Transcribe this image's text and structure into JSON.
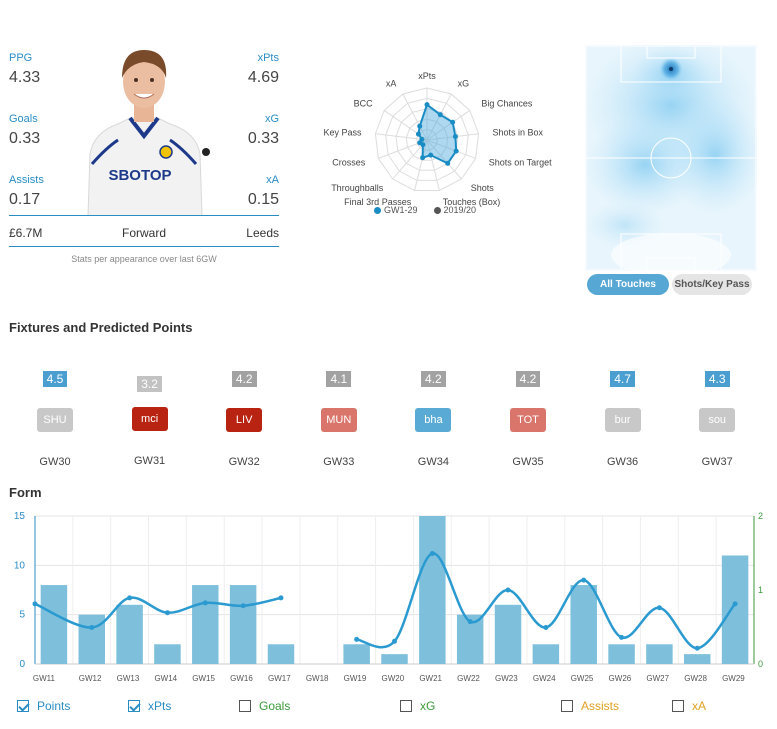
{
  "player": {
    "stats": {
      "ppg_label": "PPG",
      "ppg_value": "4.33",
      "goals_label": "Goals",
      "goals_value": "0.33",
      "assists_label": "Assists",
      "assists_value": "0.17",
      "xpts_label": "xPts",
      "xpts_value": "4.69",
      "xg_label": "xG",
      "xg_value": "0.33",
      "xa_label": "xA",
      "xa_value": "0.15"
    },
    "price": "£6.7M",
    "position": "Forward",
    "team": "Leeds",
    "shirt_sponsor": "SBOTOP",
    "note": "Stats per appearance over last 6GW"
  },
  "radar": {
    "axes": [
      "xPts",
      "xG",
      "Big Chances",
      "Shots in Box",
      "Shots on Target",
      "Shots",
      "Touches (Box)",
      "Final 3rd Passes",
      "Throughballs",
      "Crosses",
      "Key Pass",
      "BCC",
      "xA"
    ],
    "values_current": [
      0.68,
      0.55,
      0.6,
      0.55,
      0.6,
      0.6,
      0.3,
      0.35,
      0.12,
      0.15,
      0.1,
      0.2,
      0.3
    ],
    "legend_current": "GW1-29",
    "legend_previous": "2019/20",
    "color_current": "#1a8cc4",
    "color_previous": "#555555"
  },
  "heatmap": {
    "buttons": {
      "all_touches": "All Touches",
      "shots_key_pass": "Shots/Key Pass"
    }
  },
  "fixtures": {
    "title": "Fixtures and Predicted Points",
    "items": [
      {
        "pred": "4.5",
        "pred_color": "#4a9fd0",
        "team": "SHU",
        "team_color": "#c8c8c8",
        "gw": "GW30"
      },
      {
        "pred": "3.2",
        "pred_color": "#c2c2c2",
        "team": "mci",
        "team_color": "#b82312",
        "gw": "GW31"
      },
      {
        "pred": "4.2",
        "pred_color": "#a2a2a2",
        "team": "LIV",
        "team_color": "#b82312",
        "gw": "GW32"
      },
      {
        "pred": "4.1",
        "pred_color": "#a2a2a2",
        "team": "MUN",
        "team_color": "#d9756a",
        "gw": "GW33"
      },
      {
        "pred": "4.2",
        "pred_color": "#a2a2a2",
        "team": "bha",
        "team_color": "#5aaad6",
        "gw": "GW34"
      },
      {
        "pred": "4.2",
        "pred_color": "#a2a2a2",
        "team": "TOT",
        "team_color": "#d9756a",
        "gw": "GW35"
      },
      {
        "pred": "4.7",
        "pred_color": "#4a9fd0",
        "team": "bur",
        "team_color": "#c8c8c8",
        "gw": "GW36"
      },
      {
        "pred": "4.3",
        "pred_color": "#4a9fd0",
        "team": "sou",
        "team_color": "#c8c8c8",
        "gw": "GW37"
      }
    ]
  },
  "form": {
    "title": "Form",
    "toggles": [
      {
        "label": "Points",
        "checked": true,
        "color": "#2a8cc4"
      },
      {
        "label": "xPts",
        "checked": true,
        "color": "#2a8cc4"
      },
      {
        "label": "Goals",
        "checked": false,
        "color": "#3a9a3a"
      },
      {
        "label": "xG",
        "checked": false,
        "color": "#3a9a3a"
      },
      {
        "label": "Assists",
        "checked": false,
        "color": "#e0a020"
      },
      {
        "label": "xA",
        "checked": false,
        "color": "#e0a020"
      }
    ]
  },
  "chart_data": {
    "type": "bar",
    "categories": [
      "GW11",
      "GW12",
      "GW13",
      "GW14",
      "GW15",
      "GW16",
      "GW17",
      "GW18",
      "GW19",
      "GW20",
      "GW21",
      "GW22",
      "GW23",
      "GW24",
      "GW25",
      "GW26",
      "GW27",
      "GW28",
      "GW29"
    ],
    "series": [
      {
        "name": "Points",
        "type": "bar",
        "axis": "left",
        "color": "#7ec0dc",
        "values": [
          8,
          5,
          6,
          2,
          8,
          8,
          2,
          null,
          2,
          1,
          15,
          5,
          6,
          2,
          8,
          2,
          2,
          1,
          11
        ]
      },
      {
        "name": "xPts",
        "type": "line",
        "axis": "left",
        "color": "#2a9ad0",
        "values": [
          6.1,
          3.7,
          6.7,
          5.2,
          6.2,
          5.9,
          6.7,
          null,
          2.5,
          2.3,
          11.2,
          4.3,
          7.5,
          3.7,
          8.5,
          2.7,
          5.7,
          1.6,
          6.1
        ]
      }
    ],
    "left_ticks": [
      "0",
      "5",
      "10",
      "15"
    ],
    "right_ticks": [
      "0",
      "1",
      "2"
    ],
    "ylim": [
      0,
      15
    ],
    "grid": true
  }
}
